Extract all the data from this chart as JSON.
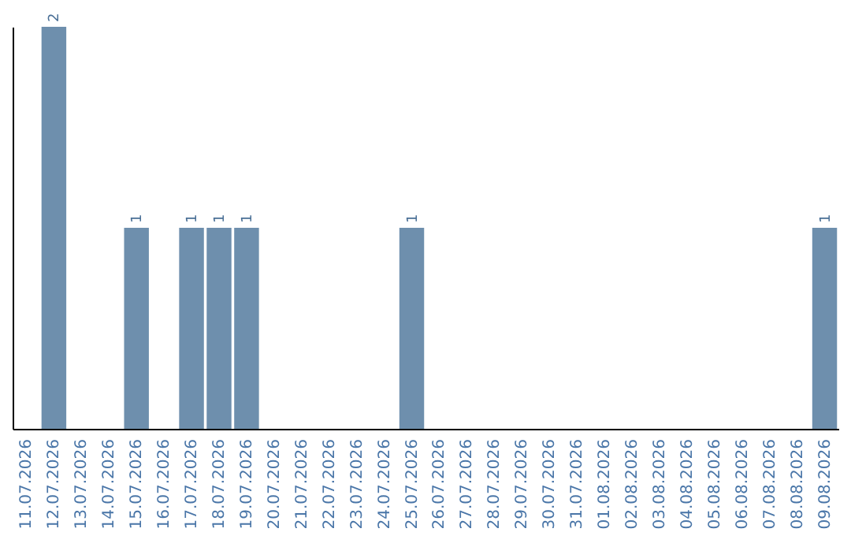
{
  "chart_data": {
    "type": "bar",
    "categories": [
      "11.07.2026",
      "12.07.2026",
      "13.07.2026",
      "14.07.2026",
      "15.07.2026",
      "16.07.2026",
      "17.07.2026",
      "18.07.2026",
      "19.07.2026",
      "20.07.2026",
      "21.07.2026",
      "22.07.2026",
      "23.07.2026",
      "24.07.2026",
      "25.07.2026",
      "26.07.2026",
      "27.07.2026",
      "28.07.2026",
      "29.07.2026",
      "30.07.2026",
      "31.07.2026",
      "01.08.2026",
      "02.08.2026",
      "03.08.2026",
      "04.08.2026",
      "05.08.2026",
      "06.08.2026",
      "07.08.2026",
      "08.08.2026",
      "09.08.2026"
    ],
    "values": [
      null,
      2,
      null,
      null,
      1,
      null,
      1,
      1,
      1,
      null,
      null,
      null,
      null,
      null,
      1,
      null,
      null,
      null,
      null,
      null,
      null,
      null,
      null,
      null,
      null,
      null,
      null,
      null,
      null,
      1
    ],
    "color": "#6e8fad",
    "data_labels": true,
    "grid": false,
    "tick_labels": "x"
  }
}
